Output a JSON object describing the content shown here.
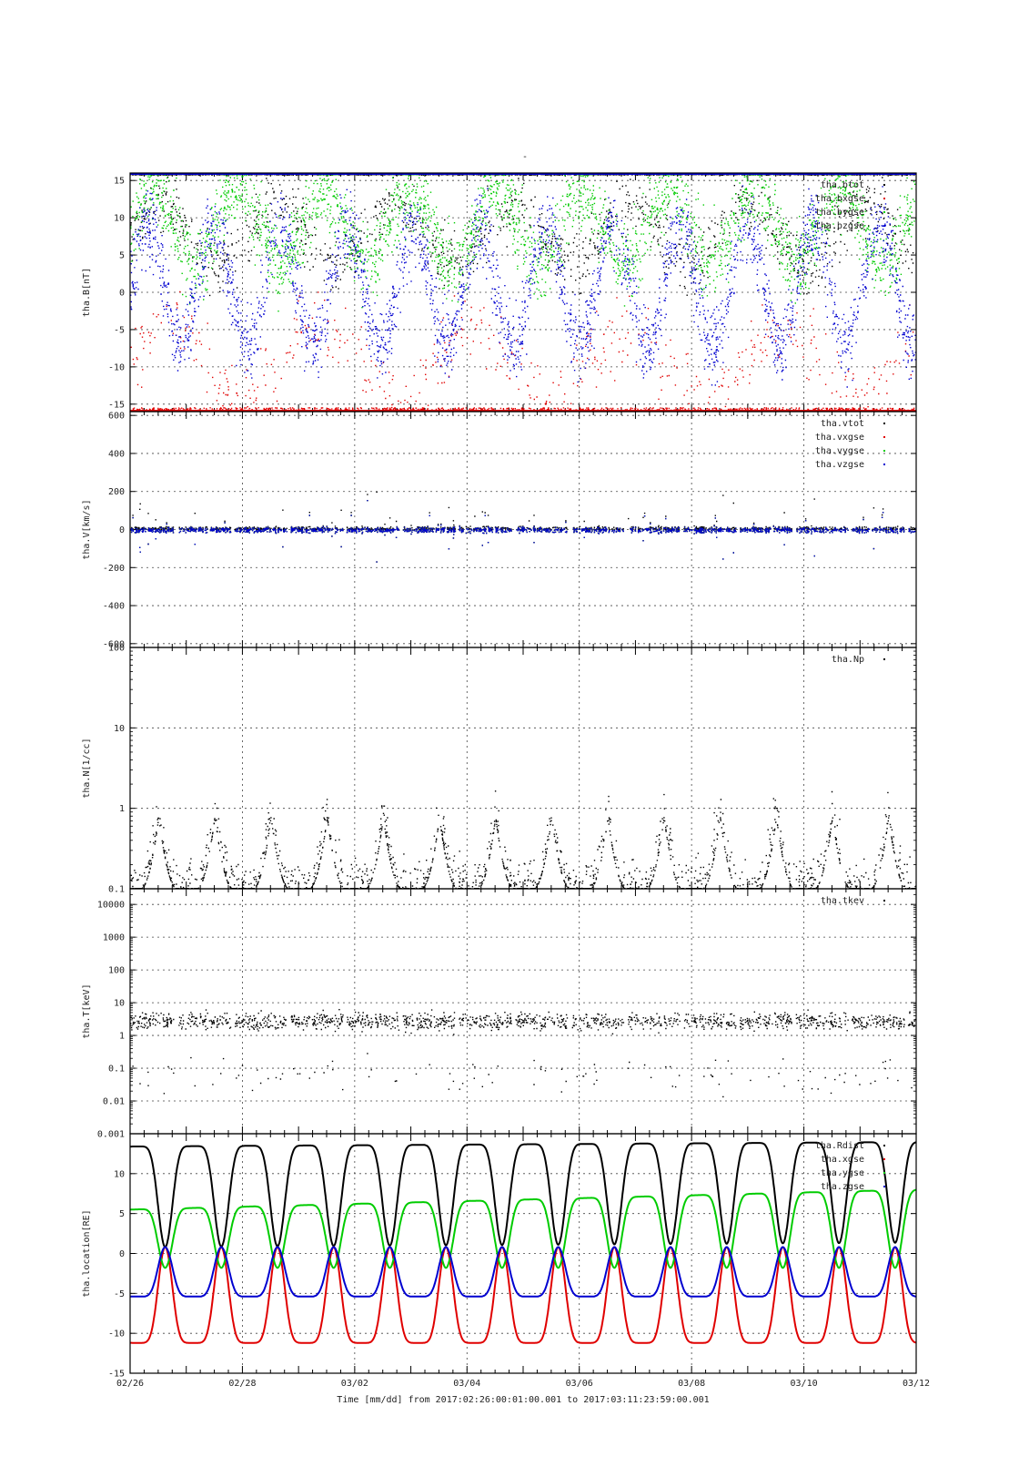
{
  "figure": {
    "title": "-",
    "xlabel": "Time [mm/dd]  from 2017:02:26:00:01:00.001  to  2017:03:11:23:59:00.001"
  },
  "colors": {
    "black": "#000000",
    "red": "#e00000",
    "green": "#00cc00",
    "blue": "#0000d0"
  },
  "chart_data": [
    {
      "type": "scatter",
      "ylabel": "tha.B[nT]",
      "yscale": "linear",
      "ylim": [
        -16,
        16
      ],
      "yticks": [
        15,
        10,
        5,
        0,
        -5,
        -10,
        -15
      ],
      "ytick_labels": [
        "15",
        "10",
        "5",
        "0",
        "-5",
        "-10",
        "-15"
      ],
      "grid": true,
      "legend_position": "top-right",
      "series": [
        {
          "name": "tha.btot",
          "color": "black"
        },
        {
          "name": "tha.bxgse",
          "color": "red"
        },
        {
          "name": "tha.bygse",
          "color": "green"
        },
        {
          "name": "tha.bzgse",
          "color": "blue"
        }
      ]
    },
    {
      "type": "scatter",
      "ylabel": "tha.V[km/s]",
      "yscale": "linear",
      "ylim": [
        -620,
        620
      ],
      "yticks": [
        600,
        400,
        200,
        0,
        -200,
        -400,
        -600
      ],
      "ytick_labels": [
        "600",
        "400",
        "200",
        "0",
        "-200",
        "-400",
        "-600"
      ],
      "grid": true,
      "legend_position": "top-right",
      "series": [
        {
          "name": "tha.vtot",
          "color": "black"
        },
        {
          "name": "tha.vxgse",
          "color": "red"
        },
        {
          "name": "tha.vygse",
          "color": "green"
        },
        {
          "name": "tha.vzgse",
          "color": "blue"
        }
      ]
    },
    {
      "type": "scatter",
      "ylabel": "tha.N[1/cc]",
      "yscale": "log",
      "ylim": [
        0.1,
        100
      ],
      "yticks": [
        100,
        10,
        1,
        0.1
      ],
      "ytick_labels": [
        "100",
        "10",
        "1",
        "0.1"
      ],
      "grid": true,
      "legend_position": "top-right",
      "series": [
        {
          "name": "tha.Np",
          "color": "black"
        }
      ]
    },
    {
      "type": "scatter",
      "ylabel": "tha.T[keV]",
      "yscale": "log",
      "ylim": [
        0.001,
        30000
      ],
      "yticks": [
        10000,
        1000,
        100,
        10,
        1,
        0.1,
        0.01,
        0.001
      ],
      "ytick_labels": [
        "10000",
        "1000",
        "100",
        "10",
        "1",
        "0.1",
        "0.01",
        "0.001"
      ],
      "grid": true,
      "legend_position": "top-right",
      "series": [
        {
          "name": "tha.tkev",
          "color": "black"
        }
      ]
    },
    {
      "type": "line",
      "ylabel": "tha.location[RE]",
      "yscale": "linear",
      "ylim": [
        -15,
        15
      ],
      "yticks": [
        10,
        5,
        0,
        -5,
        -10,
        -15
      ],
      "ytick_labels": [
        "10",
        "5",
        "0",
        "-5",
        "-10",
        "-15"
      ],
      "grid": true,
      "legend_position": "top-right",
      "xticks": [
        0,
        2,
        4,
        6,
        8,
        10,
        12,
        14
      ],
      "xtick_labels": [
        "02/26",
        "02/28",
        "03/02",
        "03/04",
        "03/06",
        "03/08",
        "03/10",
        "03/12"
      ],
      "xlim": [
        "02/26",
        "03/12"
      ],
      "orbit_period_days": 1.0,
      "first_apogee_x": "02/26 03:00",
      "series": [
        {
          "name": "tha.Rdist",
          "color": "black",
          "apogee": 13.4,
          "perigee": 0.8
        },
        {
          "name": "tha.xgse",
          "color": "red",
          "apogee": -11.2,
          "perigee": 0.8
        },
        {
          "name": "tha.ygse",
          "color": "green",
          "apogee_start": 5.5,
          "apogee_end": 8.0,
          "perigee": -1.8
        },
        {
          "name": "tha.zgse",
          "color": "blue",
          "apogee": -5.4,
          "perigee": 0.8
        }
      ]
    }
  ]
}
